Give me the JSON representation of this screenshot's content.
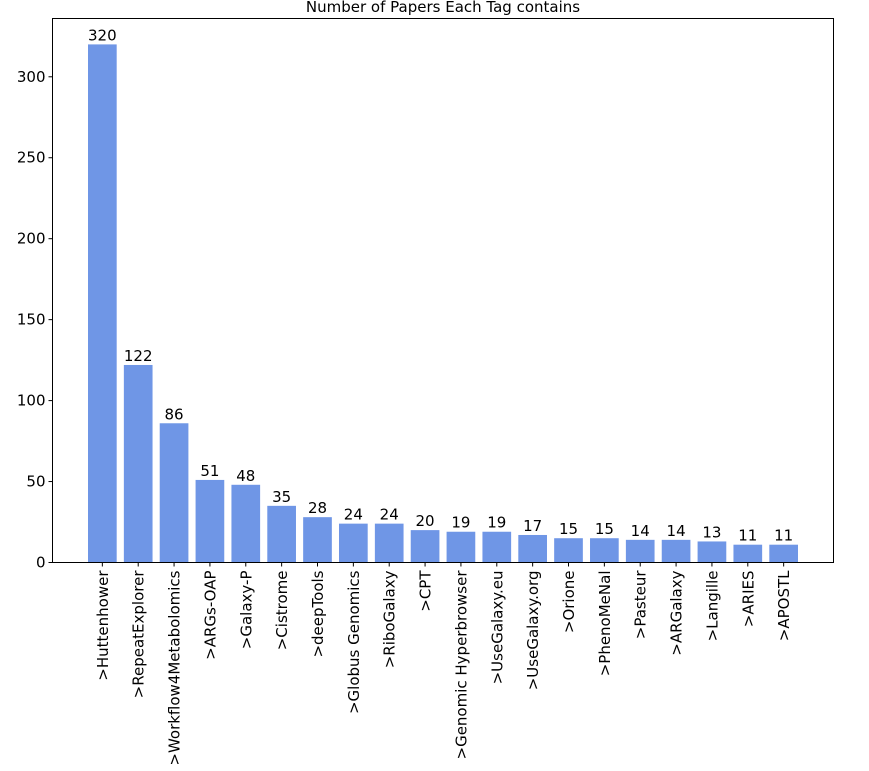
{
  "chart_data": {
    "type": "bar",
    "title": "Number of Papers Each Tag contains",
    "xlabel": "",
    "ylabel": "",
    "categories": [
      ">Huttenhower",
      ">RepeatExplorer",
      ">Workflow4Metabolomics",
      ">ARGs-OAP",
      ">Galaxy-P",
      ">Cistrome",
      ">deepTools",
      ">Globus Genomics",
      ">RiboGalaxy",
      ">CPT",
      ">Genomic Hyperbrowser",
      ">UseGalaxy.eu",
      ">UseGalaxy.org",
      ">Orione",
      ">PhenoMeNal",
      ">Pasteur",
      ">ARGalaxy",
      ">Langille",
      ">ARIES",
      ">APOSTL"
    ],
    "values": [
      320,
      122,
      86,
      51,
      48,
      35,
      28,
      24,
      24,
      20,
      19,
      19,
      17,
      15,
      15,
      14,
      14,
      13,
      11,
      11
    ],
    "ylim": [
      0,
      336
    ],
    "yticks": [
      0,
      50,
      100,
      150,
      200,
      250,
      300
    ],
    "grid": false,
    "data_labels": true,
    "bar_color": "#6f96e6"
  }
}
